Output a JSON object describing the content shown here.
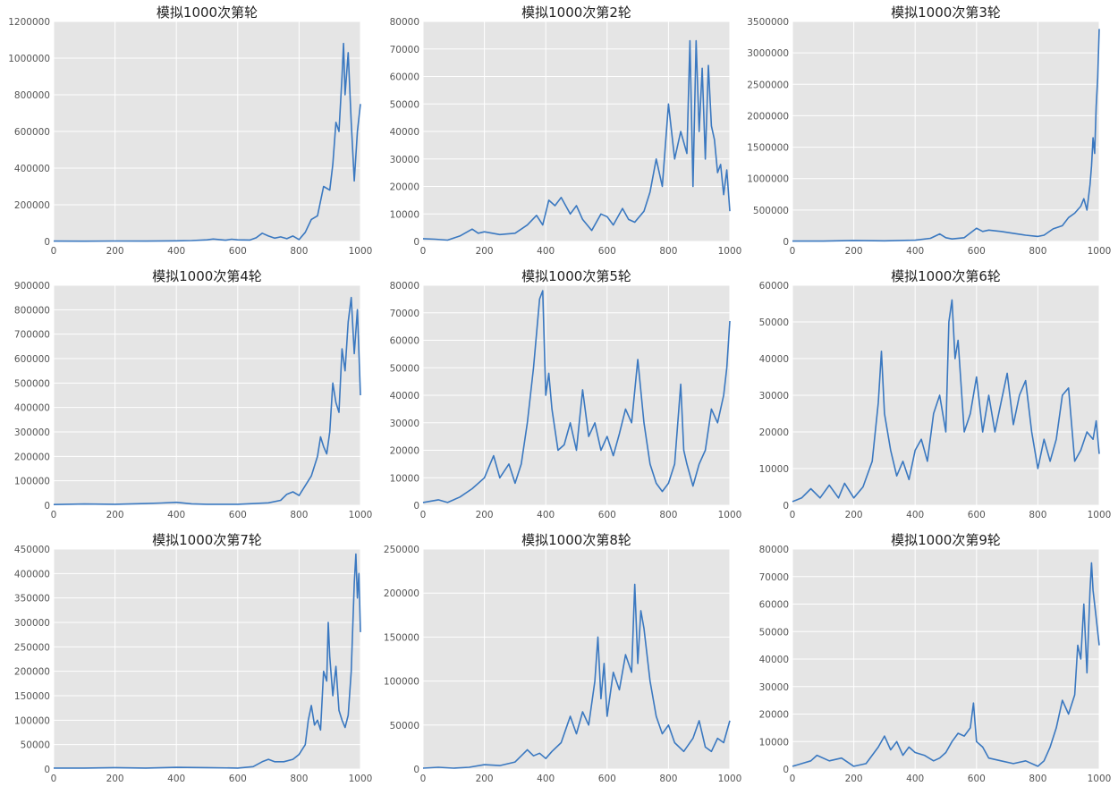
{
  "colors": {
    "background": "#e5e5e5",
    "grid": "#ffffff",
    "line": "#3a78c0"
  },
  "chart_data": [
    {
      "type": "line",
      "title": "模拟1000次第轮",
      "xlabel": "",
      "ylabel": "",
      "xlim": [
        0,
        1000
      ],
      "ylim": [
        0,
        1200000
      ],
      "xticks": [
        0,
        200,
        400,
        600,
        800,
        1000
      ],
      "yticks": [
        0,
        200000,
        400000,
        600000,
        800000,
        1000000,
        1200000
      ],
      "grid": true,
      "x": [
        0,
        100,
        200,
        300,
        400,
        450,
        500,
        520,
        560,
        580,
        600,
        640,
        660,
        680,
        700,
        720,
        740,
        760,
        780,
        800,
        820,
        840,
        860,
        880,
        900,
        910,
        920,
        930,
        940,
        945,
        950,
        960,
        970,
        980,
        990,
        1000
      ],
      "values": [
        2000,
        1500,
        2500,
        2000,
        3500,
        5000,
        9000,
        13000,
        7000,
        12000,
        9000,
        8000,
        20000,
        45000,
        30000,
        18000,
        25000,
        15000,
        30000,
        10000,
        50000,
        120000,
        140000,
        300000,
        280000,
        420000,
        650000,
        600000,
        900000,
        1080000,
        800000,
        1030000,
        650000,
        330000,
        600000,
        750000
      ]
    },
    {
      "type": "line",
      "title": "模拟1000次第2轮",
      "xlabel": "",
      "ylabel": "",
      "xlim": [
        0,
        1000
      ],
      "ylim": [
        0,
        80000
      ],
      "xticks": [
        0,
        200,
        400,
        600,
        800,
        1000
      ],
      "yticks": [
        0,
        10000,
        20000,
        30000,
        40000,
        50000,
        60000,
        70000,
        80000
      ],
      "grid": true,
      "x": [
        0,
        40,
        80,
        120,
        160,
        180,
        200,
        250,
        300,
        340,
        370,
        390,
        410,
        430,
        450,
        480,
        500,
        520,
        550,
        580,
        600,
        620,
        650,
        670,
        690,
        720,
        740,
        760,
        780,
        800,
        820,
        840,
        860,
        870,
        880,
        890,
        900,
        910,
        920,
        930,
        940,
        950,
        960,
        970,
        980,
        990,
        1000
      ],
      "values": [
        1000,
        800,
        500,
        2000,
        4500,
        3000,
        3500,
        2500,
        3000,
        6000,
        9500,
        6000,
        15000,
        13000,
        16000,
        10000,
        13000,
        8000,
        4000,
        10000,
        9000,
        6000,
        12000,
        8000,
        7000,
        11000,
        18000,
        30000,
        20000,
        50000,
        30000,
        40000,
        32000,
        73000,
        20000,
        73000,
        40000,
        63000,
        30000,
        64000,
        42000,
        37000,
        25000,
        28000,
        17000,
        26000,
        11000
      ]
    },
    {
      "type": "line",
      "title": "模拟1000次第3轮",
      "xlabel": "",
      "ylabel": "",
      "xlim": [
        0,
        1000
      ],
      "ylim": [
        0,
        3500000
      ],
      "xticks": [
        0,
        200,
        400,
        600,
        800,
        1000
      ],
      "yticks": [
        0,
        500000,
        1000000,
        1500000,
        2000000,
        2500000,
        3000000,
        3500000
      ],
      "grid": true,
      "x": [
        0,
        100,
        200,
        300,
        400,
        450,
        480,
        500,
        520,
        560,
        600,
        620,
        640,
        680,
        720,
        760,
        800,
        820,
        850,
        880,
        900,
        920,
        940,
        950,
        960,
        970,
        975,
        980,
        985,
        990,
        995,
        1000
      ],
      "values": [
        5000,
        5000,
        15000,
        10000,
        20000,
        50000,
        120000,
        60000,
        40000,
        60000,
        210000,
        160000,
        180000,
        160000,
        130000,
        100000,
        80000,
        100000,
        200000,
        250000,
        380000,
        450000,
        560000,
        680000,
        500000,
        900000,
        1200000,
        1650000,
        1400000,
        2150000,
        2600000,
        3380000
      ]
    },
    {
      "type": "line",
      "title": "模拟1000次第4轮",
      "xlabel": "",
      "ylabel": "",
      "xlim": [
        0,
        1000
      ],
      "ylim": [
        0,
        900000
      ],
      "xticks": [
        0,
        200,
        400,
        600,
        800,
        1000
      ],
      "yticks": [
        0,
        100000,
        200000,
        300000,
        400000,
        500000,
        600000,
        700000,
        800000,
        900000
      ],
      "grid": true,
      "x": [
        0,
        100,
        200,
        300,
        350,
        400,
        450,
        500,
        600,
        700,
        740,
        760,
        780,
        800,
        820,
        840,
        860,
        870,
        880,
        890,
        900,
        910,
        920,
        930,
        940,
        950,
        960,
        970,
        980,
        990,
        1000
      ],
      "values": [
        3000,
        5000,
        4000,
        7000,
        9000,
        12000,
        6000,
        4000,
        4000,
        10000,
        20000,
        45000,
        55000,
        40000,
        80000,
        120000,
        200000,
        280000,
        240000,
        210000,
        300000,
        500000,
        420000,
        380000,
        640000,
        550000,
        750000,
        850000,
        620000,
        800000,
        450000
      ]
    },
    {
      "type": "line",
      "title": "模拟1000次第5轮",
      "xlabel": "",
      "ylabel": "",
      "xlim": [
        0,
        1000
      ],
      "ylim": [
        0,
        80000
      ],
      "xticks": [
        0,
        200,
        400,
        600,
        800,
        1000
      ],
      "yticks": [
        0,
        10000,
        20000,
        30000,
        40000,
        50000,
        60000,
        70000,
        80000
      ],
      "grid": true,
      "x": [
        0,
        50,
        80,
        120,
        160,
        200,
        230,
        250,
        280,
        300,
        320,
        340,
        360,
        380,
        390,
        400,
        410,
        420,
        440,
        460,
        480,
        500,
        520,
        540,
        560,
        580,
        600,
        620,
        640,
        660,
        680,
        700,
        720,
        740,
        760,
        780,
        800,
        820,
        840,
        850,
        860,
        880,
        900,
        920,
        940,
        960,
        980,
        990,
        1000
      ],
      "values": [
        1000,
        2000,
        1000,
        3000,
        6000,
        10000,
        18000,
        10000,
        15000,
        8000,
        15000,
        30000,
        50000,
        75000,
        78000,
        40000,
        48000,
        35000,
        20000,
        22000,
        30000,
        20000,
        42000,
        25000,
        30000,
        20000,
        25000,
        18000,
        26000,
        35000,
        30000,
        53000,
        30000,
        15000,
        8000,
        5000,
        8000,
        15000,
        44000,
        20000,
        15000,
        7000,
        15000,
        20000,
        35000,
        30000,
        40000,
        50000,
        67000
      ]
    },
    {
      "type": "line",
      "title": "模拟1000次第6轮",
      "xlabel": "",
      "ylabel": "",
      "xlim": [
        0,
        1000
      ],
      "ylim": [
        0,
        60000
      ],
      "xticks": [
        0,
        200,
        400,
        600,
        800,
        1000
      ],
      "yticks": [
        0,
        10000,
        20000,
        30000,
        40000,
        50000,
        60000
      ],
      "grid": true,
      "x": [
        0,
        30,
        60,
        90,
        120,
        150,
        170,
        200,
        230,
        260,
        280,
        290,
        300,
        320,
        340,
        360,
        380,
        400,
        420,
        440,
        460,
        480,
        500,
        510,
        520,
        530,
        540,
        560,
        580,
        600,
        620,
        640,
        660,
        680,
        700,
        720,
        740,
        760,
        780,
        800,
        820,
        840,
        860,
        880,
        900,
        920,
        940,
        960,
        980,
        990,
        1000
      ],
      "values": [
        1000,
        2000,
        4500,
        2000,
        5500,
        2000,
        6000,
        2000,
        5000,
        12000,
        28000,
        42000,
        25000,
        15000,
        8000,
        12000,
        7000,
        15000,
        18000,
        12000,
        25000,
        30000,
        20000,
        50000,
        56000,
        40000,
        45000,
        20000,
        25000,
        35000,
        20000,
        30000,
        20000,
        28000,
        36000,
        22000,
        30000,
        34000,
        20000,
        10000,
        18000,
        12000,
        18000,
        30000,
        32000,
        12000,
        15000,
        20000,
        18000,
        23000,
        14000
      ]
    },
    {
      "type": "line",
      "title": "模拟1000次第7轮",
      "xlabel": "",
      "ylabel": "",
      "xlim": [
        0,
        1000
      ],
      "ylim": [
        0,
        450000
      ],
      "xticks": [
        0,
        200,
        400,
        600,
        800,
        1000
      ],
      "yticks": [
        0,
        50000,
        100000,
        150000,
        200000,
        250000,
        300000,
        350000,
        400000,
        450000
      ],
      "grid": true,
      "x": [
        0,
        100,
        200,
        300,
        400,
        500,
        600,
        650,
        680,
        700,
        720,
        750,
        780,
        800,
        820,
        830,
        840,
        850,
        860,
        870,
        880,
        890,
        895,
        900,
        910,
        920,
        930,
        940,
        950,
        960,
        970,
        980,
        985,
        990,
        995,
        1000
      ],
      "values": [
        2000,
        2000,
        3000,
        2000,
        3500,
        3000,
        2000,
        5000,
        15000,
        20000,
        15000,
        15000,
        20000,
        30000,
        50000,
        100000,
        130000,
        90000,
        100000,
        80000,
        200000,
        180000,
        300000,
        230000,
        150000,
        210000,
        120000,
        100000,
        85000,
        110000,
        200000,
        380000,
        440000,
        350000,
        400000,
        280000
      ]
    },
    {
      "type": "line",
      "title": "模拟1000次第8轮",
      "xlabel": "",
      "ylabel": "",
      "xlim": [
        0,
        1000
      ],
      "ylim": [
        0,
        250000
      ],
      "xticks": [
        0,
        200,
        400,
        600,
        800,
        1000
      ],
      "yticks": [
        0,
        50000,
        100000,
        150000,
        200000,
        250000
      ],
      "grid": true,
      "x": [
        0,
        50,
        100,
        150,
        200,
        250,
        300,
        340,
        360,
        380,
        400,
        420,
        450,
        480,
        500,
        520,
        540,
        560,
        570,
        580,
        590,
        600,
        620,
        640,
        660,
        680,
        690,
        700,
        710,
        720,
        740,
        760,
        780,
        800,
        820,
        850,
        880,
        900,
        920,
        940,
        960,
        980,
        1000
      ],
      "values": [
        1000,
        2000,
        1000,
        2000,
        5000,
        4000,
        8000,
        22000,
        15000,
        18000,
        12000,
        20000,
        30000,
        60000,
        40000,
        65000,
        50000,
        100000,
        150000,
        80000,
        120000,
        60000,
        110000,
        90000,
        130000,
        110000,
        210000,
        120000,
        180000,
        160000,
        100000,
        60000,
        40000,
        50000,
        30000,
        20000,
        35000,
        55000,
        25000,
        20000,
        35000,
        30000,
        55000
      ]
    },
    {
      "type": "line",
      "title": "模拟1000次第9轮",
      "xlabel": "",
      "ylabel": "",
      "xlim": [
        0,
        1000
      ],
      "ylim": [
        0,
        80000
      ],
      "xticks": [
        0,
        200,
        400,
        600,
        800,
        1000
      ],
      "yticks": [
        0,
        10000,
        20000,
        30000,
        40000,
        50000,
        60000,
        70000,
        80000
      ],
      "grid": true,
      "x": [
        0,
        30,
        60,
        80,
        120,
        160,
        200,
        240,
        280,
        300,
        320,
        340,
        360,
        380,
        400,
        430,
        460,
        480,
        500,
        520,
        540,
        560,
        580,
        590,
        600,
        620,
        640,
        680,
        720,
        760,
        800,
        820,
        840,
        860,
        880,
        900,
        920,
        930,
        940,
        950,
        960,
        970,
        975,
        980,
        990,
        1000
      ],
      "values": [
        1000,
        2000,
        3000,
        5000,
        3000,
        4000,
        1000,
        2000,
        8000,
        12000,
        7000,
        10000,
        5000,
        8000,
        6000,
        5000,
        3000,
        4000,
        6000,
        10000,
        13000,
        12000,
        15000,
        24000,
        10000,
        8000,
        4000,
        3000,
        2000,
        3000,
        1000,
        3000,
        8000,
        15000,
        25000,
        20000,
        27000,
        45000,
        40000,
        60000,
        35000,
        65000,
        75000,
        65000,
        55000,
        45000
      ]
    }
  ]
}
